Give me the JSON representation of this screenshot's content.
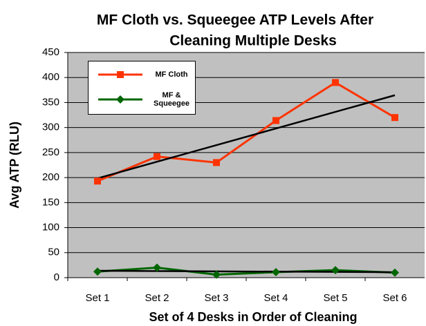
{
  "chart_data": {
    "type": "line",
    "title": [
      "MF Cloth  vs. Squeegee ATP Levels After",
      "Cleaning Multiple Desks"
    ],
    "x_label": "Set of 4 Desks in Order of Cleaning",
    "y_label": "Avg ATP (RLU)",
    "categories": [
      "Set 1",
      "Set 2",
      "Set 3",
      "Set 4",
      "Set 5",
      "Set 6"
    ],
    "series": [
      {
        "name": "MF Cloth",
        "color": "#ff3300",
        "marker": "square",
        "values": [
          193,
          242,
          230,
          314,
          390,
          320
        ]
      },
      {
        "name": "MF & Squeegee",
        "color": "#006600",
        "marker": "diamond",
        "values": [
          12,
          20,
          6,
          11,
          15,
          10
        ]
      }
    ],
    "trendline": true,
    "ylim": [
      0,
      450
    ],
    "yticks": [
      0,
      50,
      100,
      150,
      200,
      250,
      300,
      350,
      400,
      450
    ],
    "grid": true
  }
}
